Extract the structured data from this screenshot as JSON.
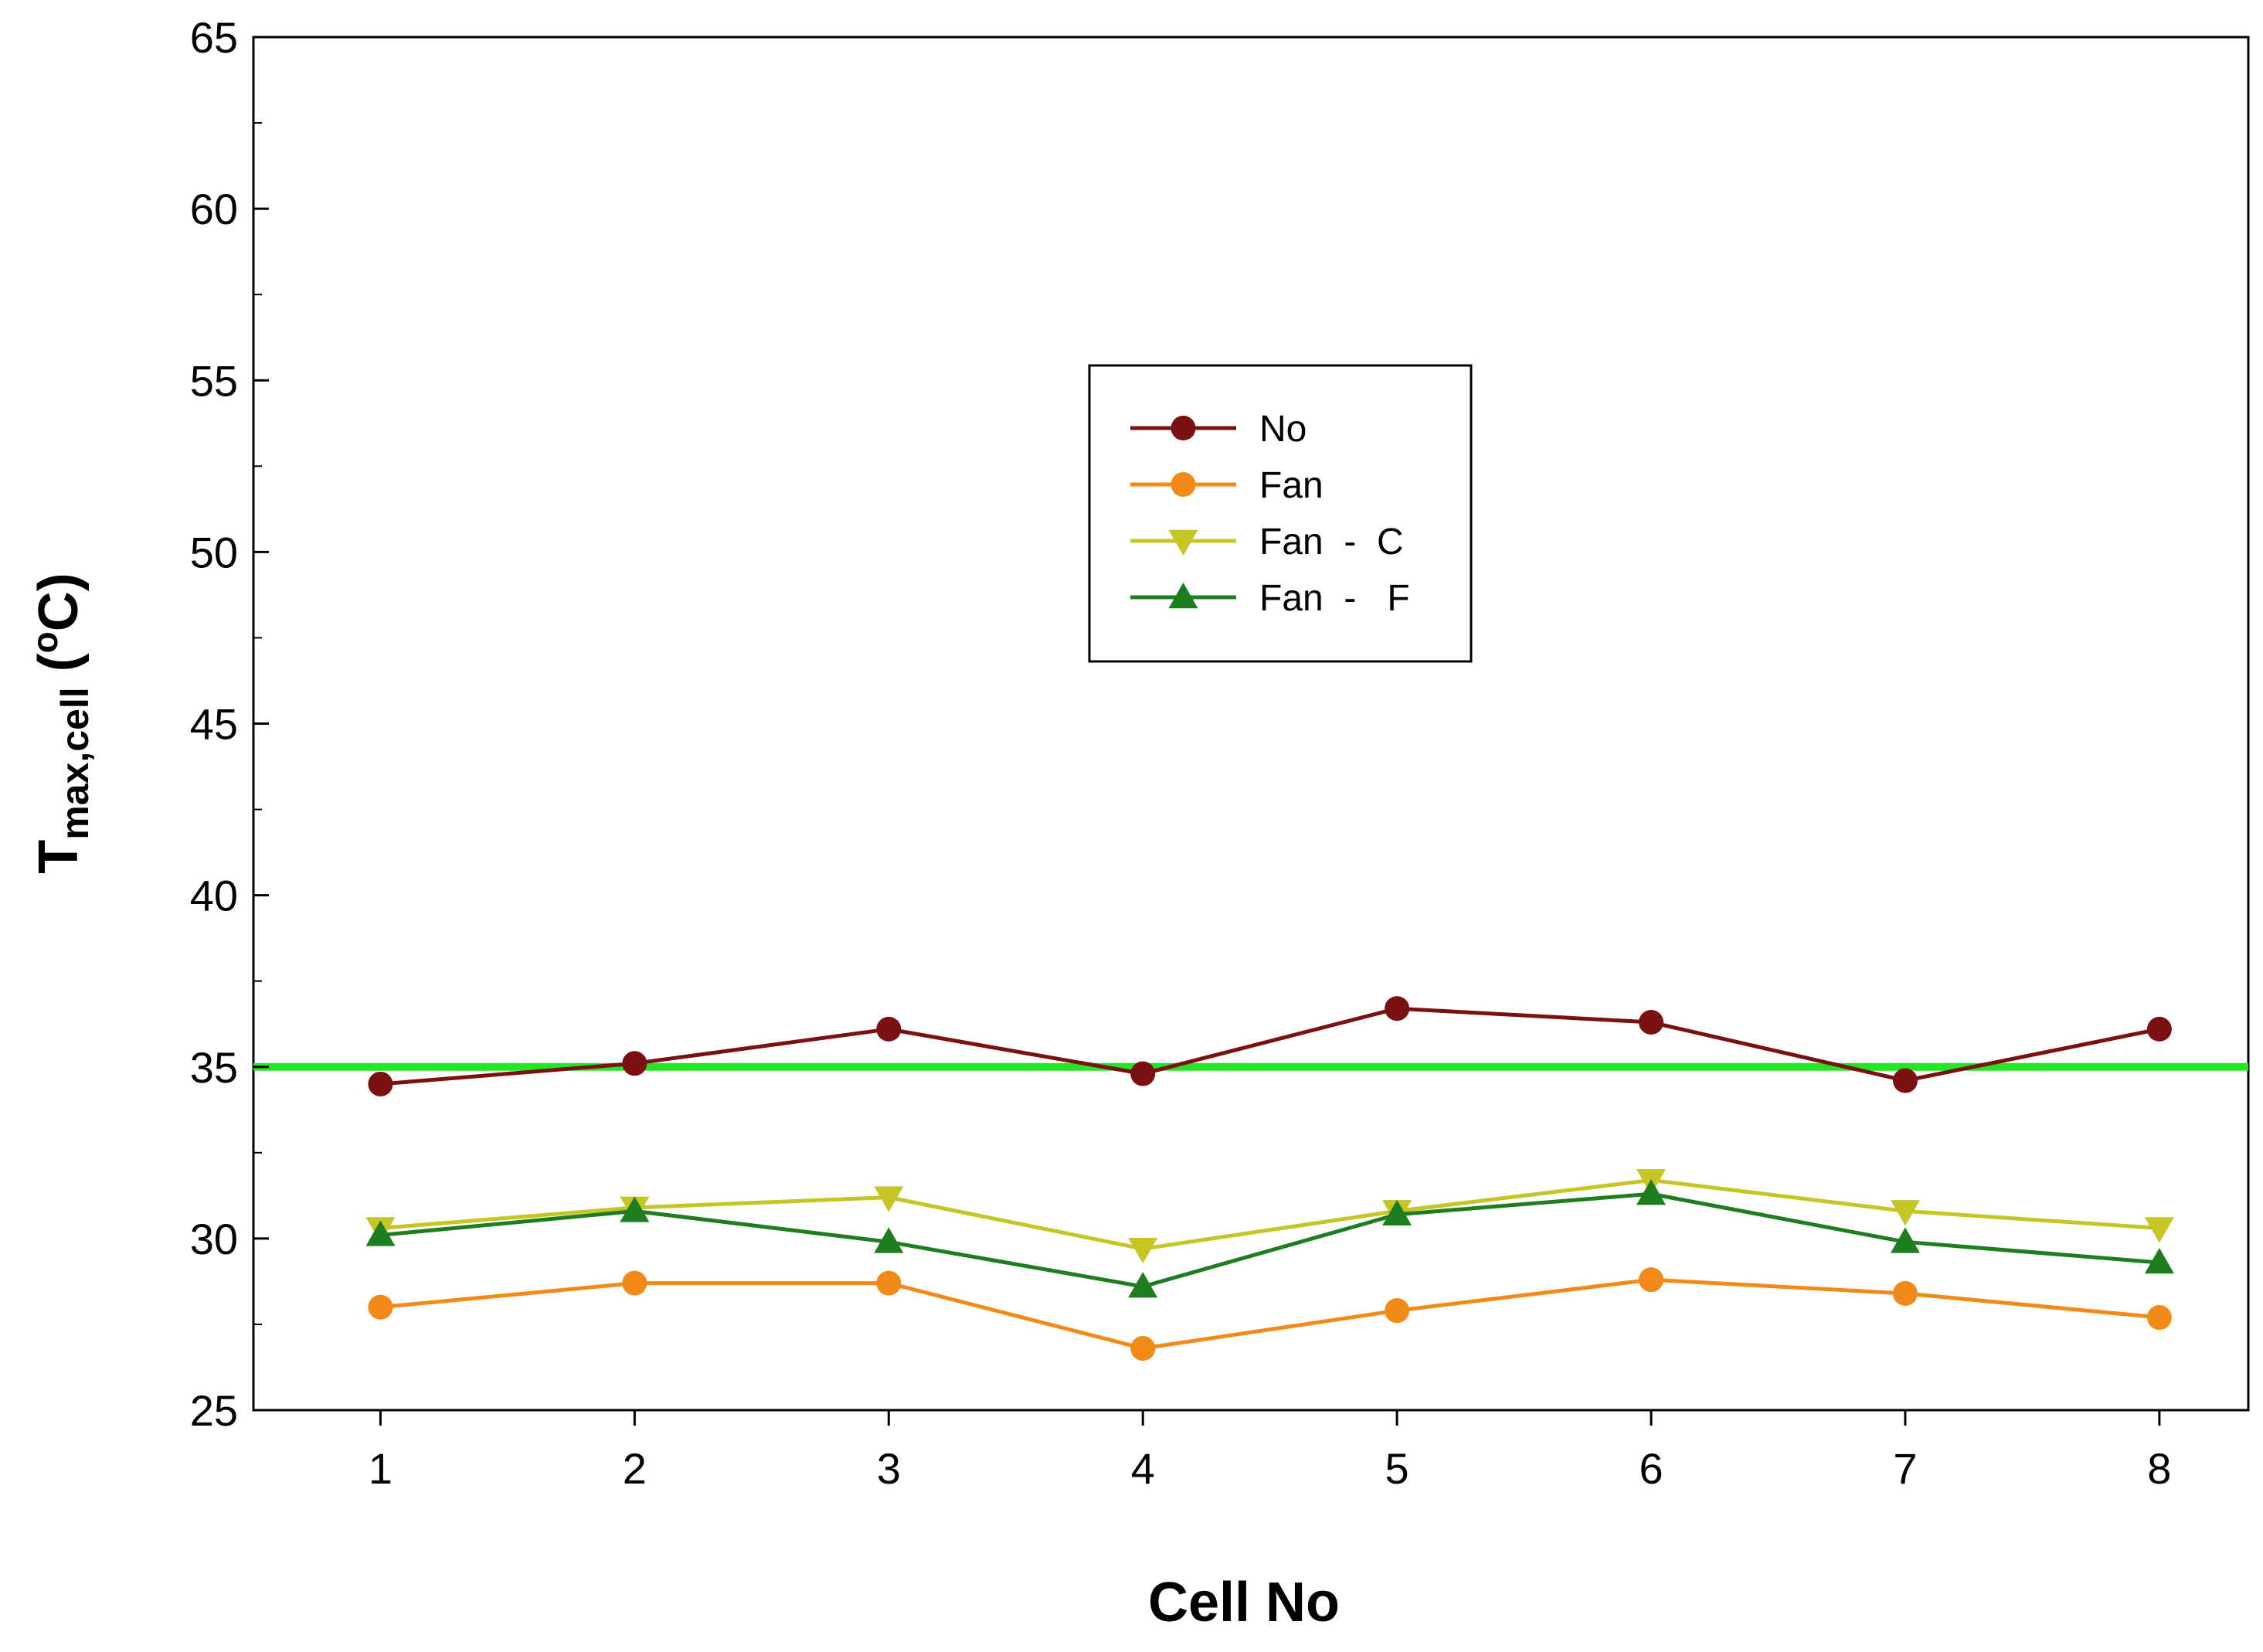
{
  "chart_data": {
    "type": "line",
    "title": "",
    "xlabel": "Cell No",
    "ylabel": {
      "main": "T",
      "sub": "max,cell",
      "unit_open": " (",
      "unit_sup": "o",
      "unit_close": "C)"
    },
    "x": [
      1,
      2,
      3,
      4,
      5,
      6,
      7,
      8
    ],
    "x_tick_labels": [
      "1",
      "2",
      "3",
      "4",
      "5",
      "6",
      "7",
      "8"
    ],
    "xlim": [
      0.5,
      8.35
    ],
    "ylim": [
      25,
      65
    ],
    "y_ticks": [
      25,
      30,
      35,
      40,
      45,
      50,
      55,
      60,
      65
    ],
    "y_minor_step": 2.5,
    "grid": false,
    "reference_line": {
      "y": 35,
      "color": "#22e622"
    },
    "legend_position": "center-upper",
    "series": [
      {
        "name": "No",
        "legend_label": "No",
        "color": "#7b1010",
        "marker": "circle",
        "values": [
          34.5,
          35.1,
          36.1,
          34.8,
          36.7,
          36.3,
          34.6,
          36.1
        ]
      },
      {
        "name": "Fan",
        "legend_label": "Fan",
        "color": "#f28a1a",
        "marker": "circle",
        "values": [
          28.0,
          28.7,
          28.7,
          26.8,
          27.9,
          28.8,
          28.4,
          27.7
        ]
      },
      {
        "name": "Fan - C",
        "legend_label": "Fan  -  C",
        "color": "#c5c526",
        "marker": "triangle-down",
        "values": [
          30.3,
          30.9,
          31.2,
          29.7,
          30.8,
          31.7,
          30.8,
          30.3
        ]
      },
      {
        "name": "Fan - F",
        "legend_label": "Fan  -   F",
        "color": "#1e7d1e",
        "marker": "triangle-up",
        "values": [
          30.1,
          30.8,
          29.9,
          28.6,
          30.7,
          31.3,
          29.9,
          29.3
        ]
      }
    ]
  }
}
